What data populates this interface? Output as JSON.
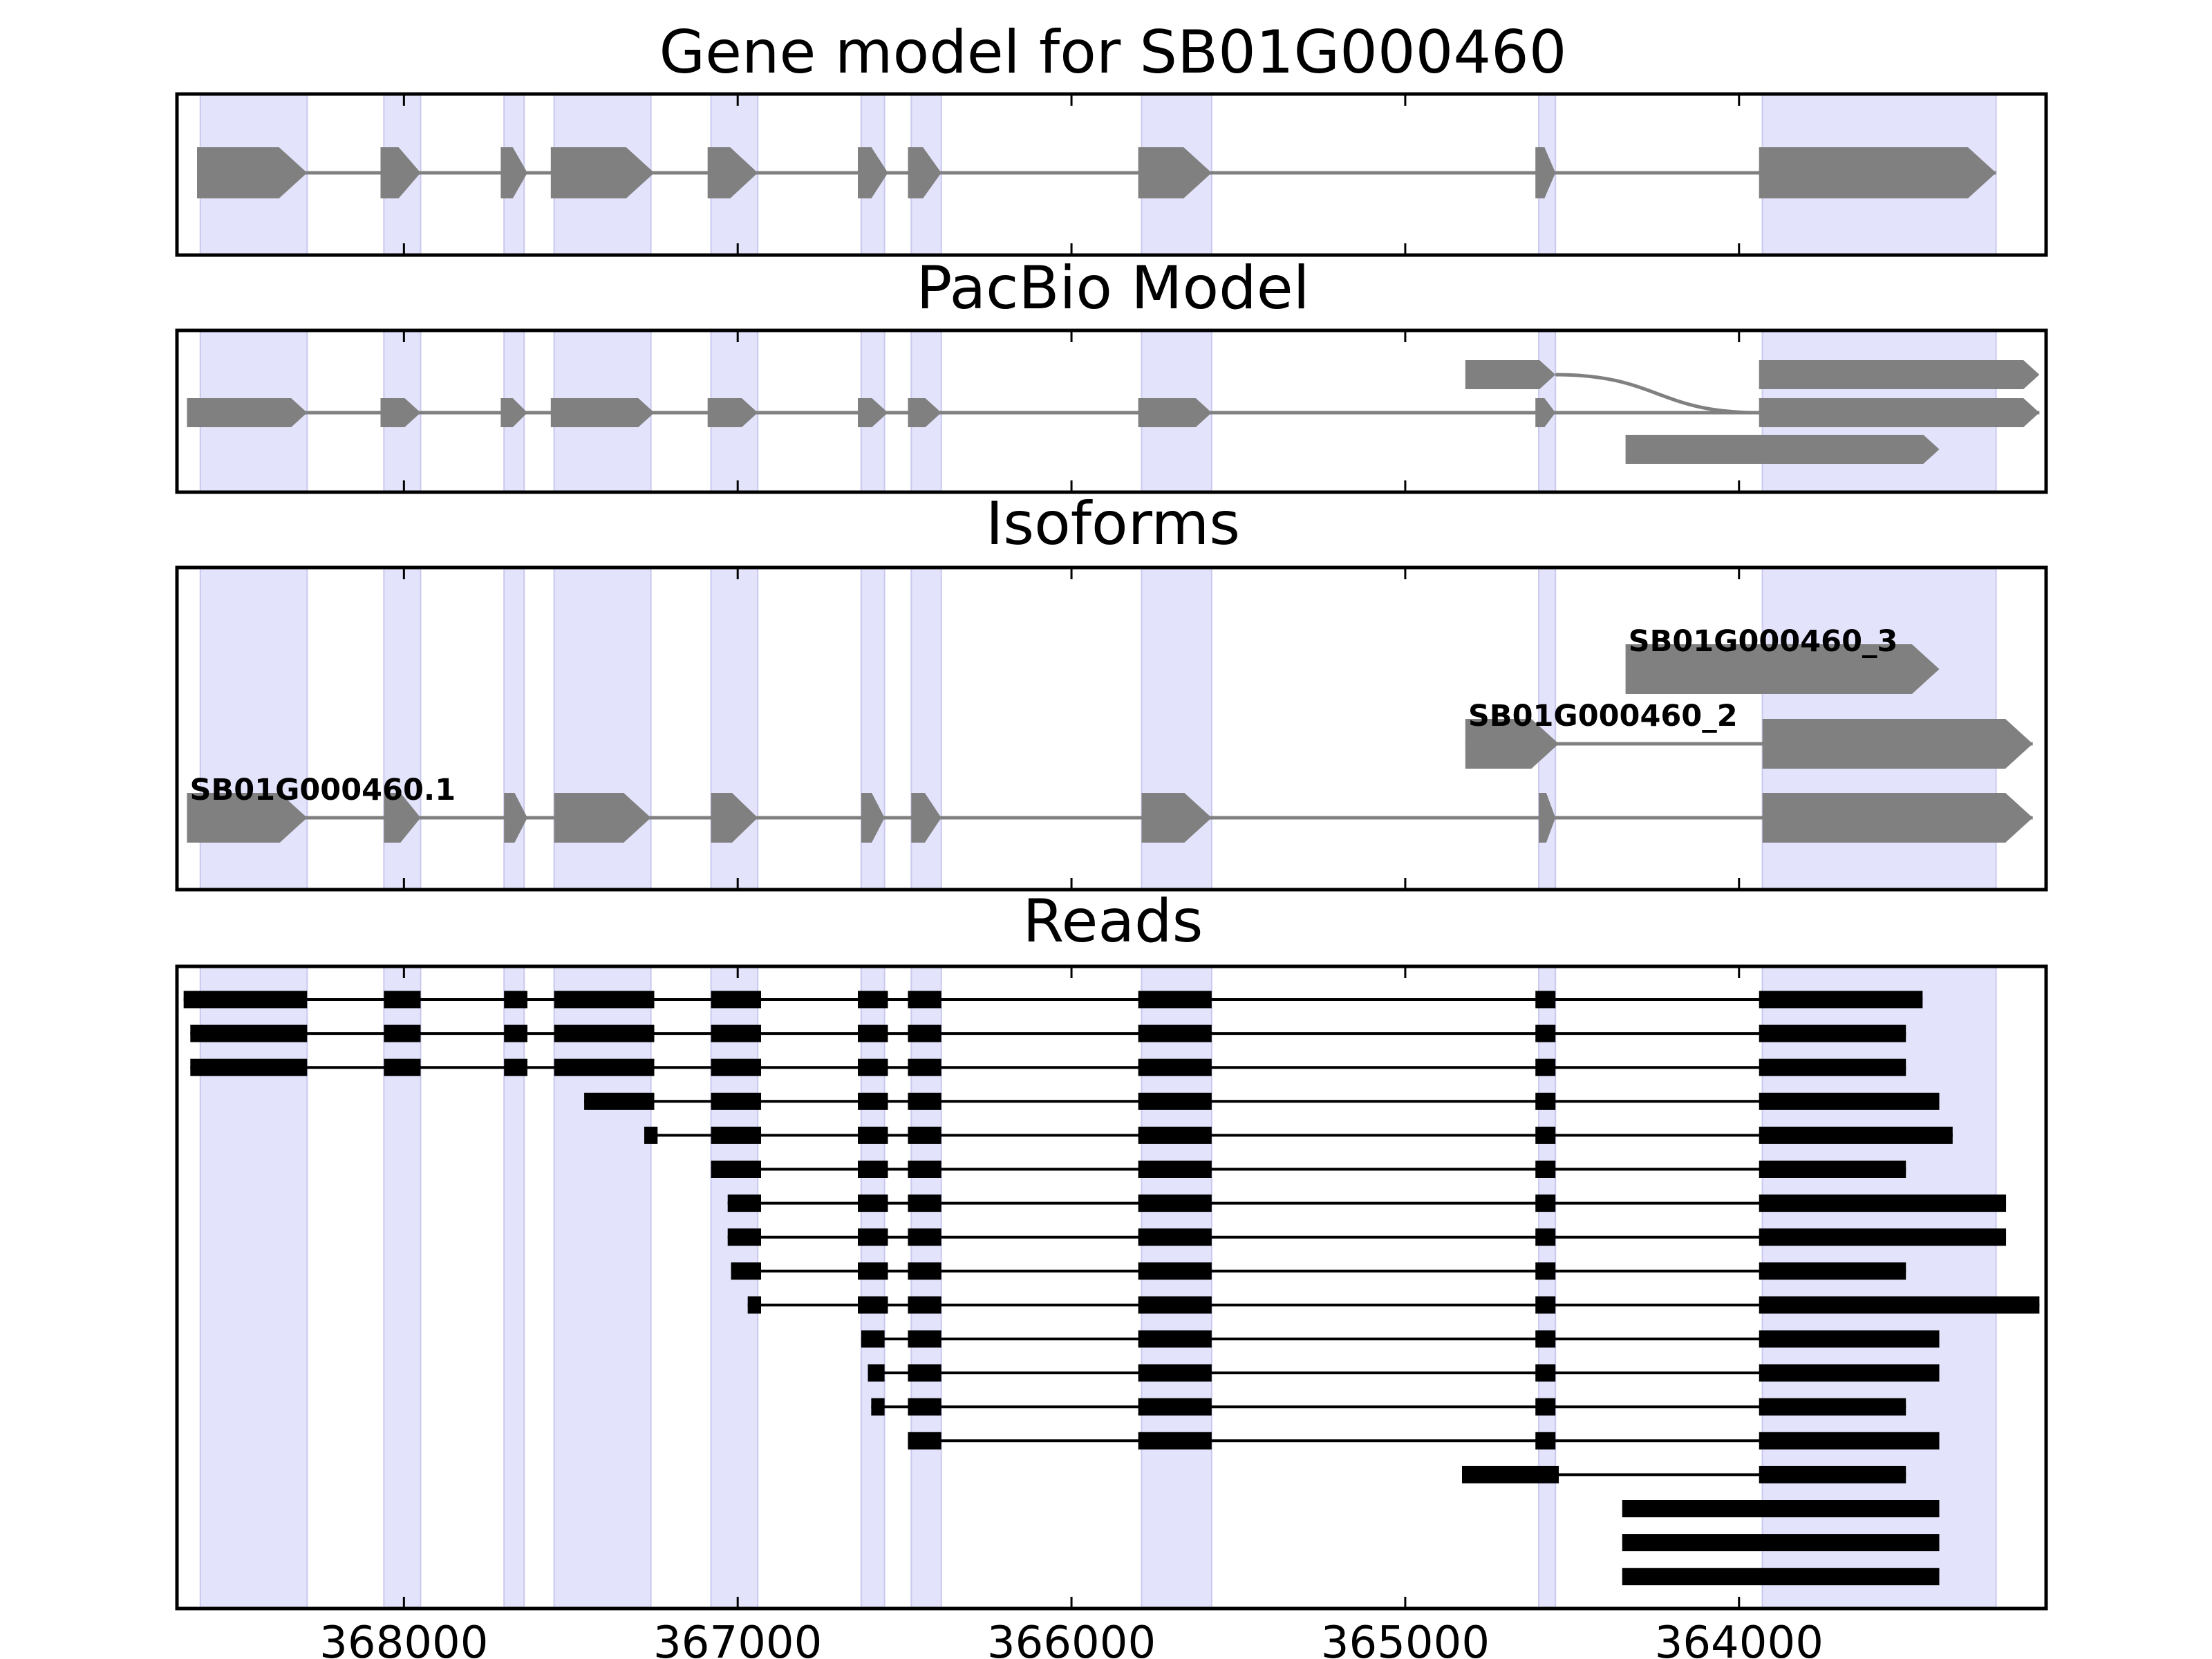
{
  "colors": {
    "exon_band": "#e3e3fb",
    "exon_band_edge": "#c9c9ee",
    "model": "#808080",
    "read": "#000000",
    "axes": "#000000",
    "background": "#ffffff"
  },
  "chart_data": {
    "type": "gene-model",
    "xlim": [
      368680,
      363080
    ],
    "xaxis_inverted": true,
    "xticks": [
      368000,
      367000,
      366000,
      365000,
      364000
    ],
    "exon_bands": [
      [
        368610,
        368290
      ],
      [
        368060,
        367950
      ],
      [
        367700,
        367640
      ],
      [
        367550,
        367260
      ],
      [
        367080,
        366940
      ],
      [
        366630,
        366560
      ],
      [
        366480,
        366390
      ],
      [
        365790,
        365580
      ],
      [
        364600,
        364550
      ],
      [
        363930,
        363230
      ]
    ],
    "panels": [
      {
        "title": "Gene model for SB01G000460",
        "style": "model",
        "rows": [
          {
            "label": null,
            "exons": [
              [
                368620,
                368290
              ],
              [
                368070,
                367950
              ],
              [
                367710,
                367630
              ],
              [
                367560,
                367250
              ],
              [
                367090,
                366940
              ],
              [
                366640,
                366550
              ],
              [
                366490,
                366390
              ],
              [
                365800,
                365580
              ],
              [
                364610,
                364550
              ],
              [
                363940,
                363230
              ]
            ]
          }
        ]
      },
      {
        "title": "PacBio Model",
        "style": "model",
        "rows": [
          {
            "label": null,
            "exons": [
              [
                368650,
                368290
              ],
              [
                368070,
                367950
              ],
              [
                367710,
                367630
              ],
              [
                367560,
                367250
              ],
              [
                367090,
                366940
              ],
              [
                366640,
                366550
              ],
              [
                366490,
                366390
              ],
              [
                365800,
                365580
              ],
              [
                364610,
                364550
              ],
              [
                363940,
                363100
              ]
            ]
          },
          {
            "label": null,
            "exons": [
              [
                364820,
                364550
              ],
              [
                363940,
                363100
              ]
            ],
            "join": "curve"
          },
          {
            "label": null,
            "exons": [
              [
                364340,
                363400
              ]
            ]
          }
        ]
      },
      {
        "title": "Isoforms",
        "style": "model",
        "rows": [
          {
            "label": "SB01G000460.1",
            "exons": [
              [
                368650,
                368290
              ],
              [
                368060,
                367950
              ],
              [
                367700,
                367630
              ],
              [
                367550,
                367260
              ],
              [
                367080,
                366940
              ],
              [
                366630,
                366560
              ],
              [
                366480,
                366390
              ],
              [
                365790,
                365580
              ],
              [
                364600,
                364550
              ],
              [
                363930,
                363120
              ]
            ]
          },
          {
            "label": "SB01G000460_2",
            "exons": [
              [
                364820,
                364540
              ],
              [
                363930,
                363120
              ]
            ]
          },
          {
            "label": "SB01G000460_3",
            "exons": [
              [
                364340,
                363400
              ]
            ]
          }
        ]
      },
      {
        "title": "Reads",
        "style": "reads",
        "rows": [
          {
            "exons": [
              [
                368660,
                368290
              ],
              [
                368060,
                367950
              ],
              [
                367700,
                367630
              ],
              [
                367550,
                367250
              ],
              [
                367080,
                366930
              ],
              [
                366640,
                366550
              ],
              [
                366490,
                366390
              ],
              [
                365800,
                365580
              ],
              [
                364610,
                364550
              ],
              [
                363940,
                363450
              ]
            ]
          },
          {
            "exons": [
              [
                368640,
                368290
              ],
              [
                368060,
                367950
              ],
              [
                367700,
                367630
              ],
              [
                367550,
                367250
              ],
              [
                367080,
                366930
              ],
              [
                366640,
                366550
              ],
              [
                366490,
                366390
              ],
              [
                365800,
                365580
              ],
              [
                364610,
                364550
              ],
              [
                363940,
                363500
              ]
            ]
          },
          {
            "exons": [
              [
                368640,
                368290
              ],
              [
                368060,
                367950
              ],
              [
                367700,
                367630
              ],
              [
                367550,
                367250
              ],
              [
                367080,
                366930
              ],
              [
                366640,
                366550
              ],
              [
                366490,
                366390
              ],
              [
                365800,
                365580
              ],
              [
                364610,
                364550
              ],
              [
                363940,
                363500
              ]
            ]
          },
          {
            "exons": [
              [
                367460,
                367250
              ],
              [
                367080,
                366930
              ],
              [
                366640,
                366550
              ],
              [
                366490,
                366390
              ],
              [
                365800,
                365580
              ],
              [
                364610,
                364550
              ],
              [
                363940,
                363400
              ]
            ]
          },
          {
            "exons": [
              [
                367280,
                367240
              ],
              [
                367080,
                366930
              ],
              [
                366640,
                366550
              ],
              [
                366490,
                366390
              ],
              [
                365800,
                365580
              ],
              [
                364610,
                364550
              ],
              [
                363940,
                363360
              ]
            ]
          },
          {
            "exons": [
              [
                367080,
                366930
              ],
              [
                366640,
                366550
              ],
              [
                366490,
                366390
              ],
              [
                365800,
                365580
              ],
              [
                364610,
                364550
              ],
              [
                363940,
                363500
              ]
            ]
          },
          {
            "exons": [
              [
                367030,
                366930
              ],
              [
                366640,
                366550
              ],
              [
                366490,
                366390
              ],
              [
                365800,
                365580
              ],
              [
                364610,
                364550
              ],
              [
                363940,
                363200
              ]
            ]
          },
          {
            "exons": [
              [
                367030,
                366930
              ],
              [
                366640,
                366550
              ],
              [
                366490,
                366390
              ],
              [
                365800,
                365580
              ],
              [
                364610,
                364550
              ],
              [
                363940,
                363200
              ]
            ]
          },
          {
            "exons": [
              [
                367020,
                366930
              ],
              [
                366640,
                366550
              ],
              [
                366490,
                366390
              ],
              [
                365800,
                365580
              ],
              [
                364610,
                364550
              ],
              [
                363940,
                363500
              ]
            ]
          },
          {
            "exons": [
              [
                366970,
                366930
              ],
              [
                366640,
                366550
              ],
              [
                366490,
                366390
              ],
              [
                365800,
                365580
              ],
              [
                364610,
                364550
              ],
              [
                363940,
                363100
              ]
            ]
          },
          {
            "exons": [
              [
                366630,
                366560
              ],
              [
                366490,
                366390
              ],
              [
                365800,
                365580
              ],
              [
                364610,
                364550
              ],
              [
                363940,
                363400
              ]
            ]
          },
          {
            "exons": [
              [
                366610,
                366560
              ],
              [
                366490,
                366390
              ],
              [
                365800,
                365580
              ],
              [
                364610,
                364550
              ],
              [
                363940,
                363400
              ]
            ]
          },
          {
            "exons": [
              [
                366600,
                366560
              ],
              [
                366490,
                366390
              ],
              [
                365800,
                365580
              ],
              [
                364610,
                364550
              ],
              [
                363940,
                363500
              ]
            ]
          },
          {
            "exons": [
              [
                366490,
                366390
              ],
              [
                365800,
                365580
              ],
              [
                364610,
                364550
              ],
              [
                363940,
                363400
              ]
            ]
          },
          {
            "exons": [
              [
                364830,
                364540
              ],
              [
                363940,
                363500
              ]
            ]
          },
          {
            "exons": [
              [
                364350,
                363400
              ]
            ]
          },
          {
            "exons": [
              [
                364350,
                363400
              ]
            ]
          },
          {
            "exons": [
              [
                364350,
                363400
              ]
            ]
          }
        ]
      }
    ]
  }
}
